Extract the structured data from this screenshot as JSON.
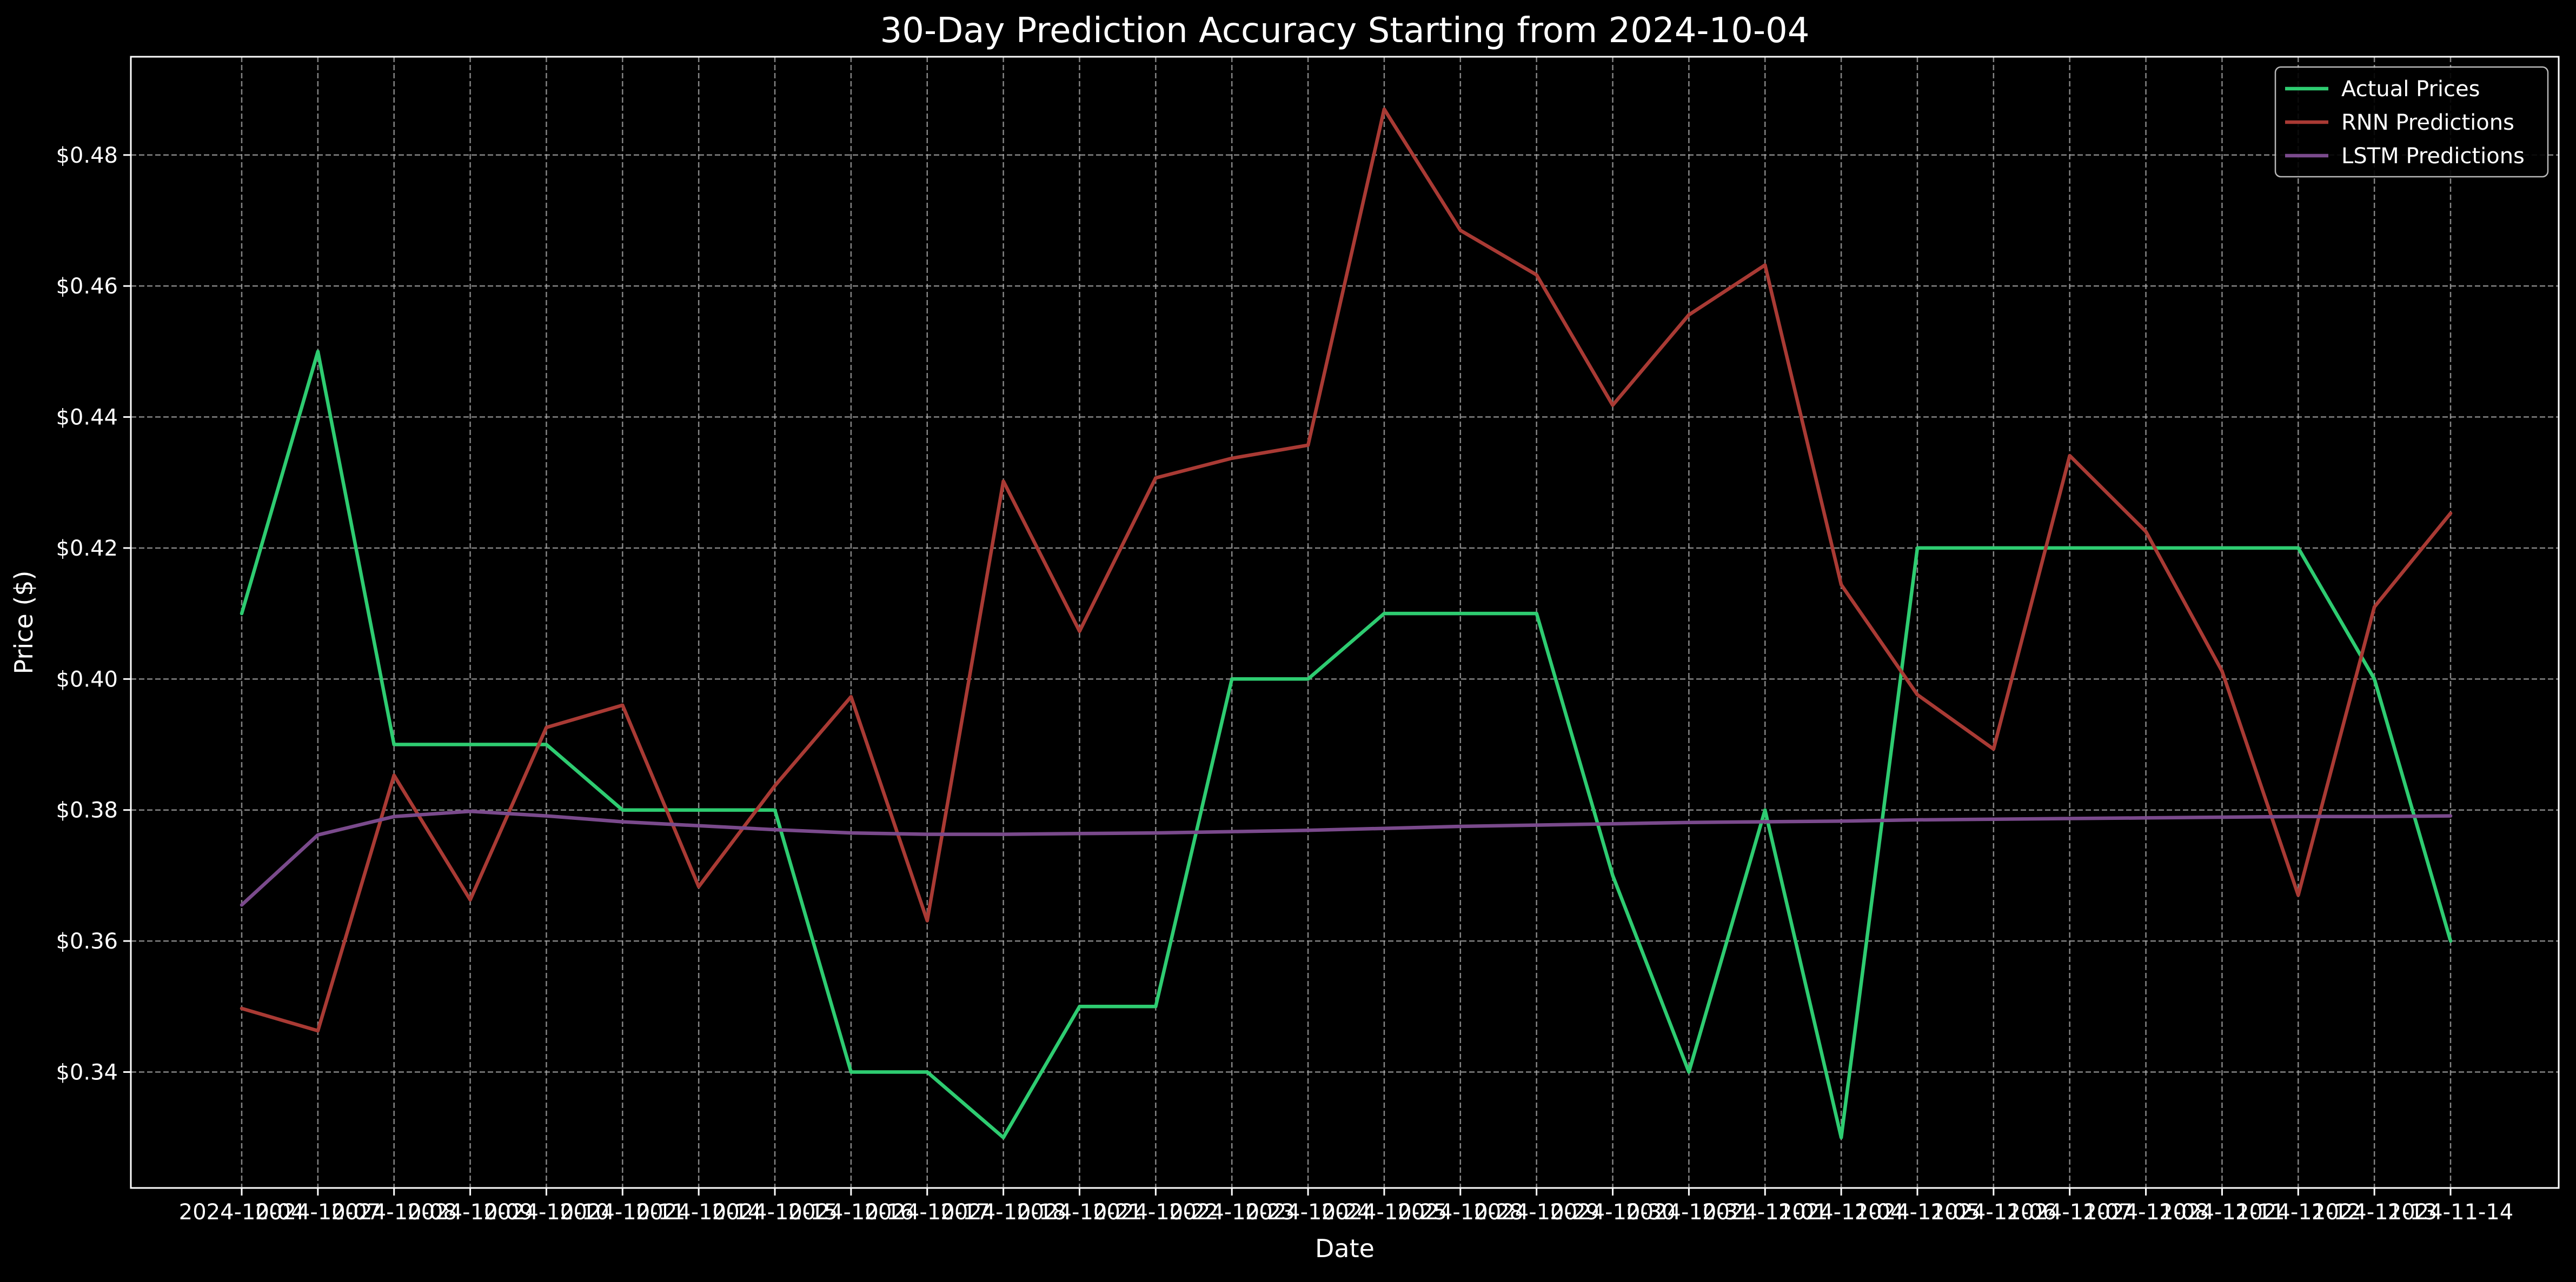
{
  "chart_data": {
    "type": "line",
    "title": "30-Day Prediction Accuracy Starting from 2024-10-04",
    "xlabel": "Date",
    "ylabel": "Price ($)",
    "x": [
      "2024-10-04",
      "2024-10-07",
      "2024-10-08",
      "2024-10-09",
      "2024-10-10",
      "2024-10-11",
      "2024-10-14",
      "2024-10-15",
      "2024-10-16",
      "2024-10-17",
      "2024-10-18",
      "2024-10-21",
      "2024-10-22",
      "2024-10-23",
      "2024-10-24",
      "2024-10-25",
      "2024-10-28",
      "2024-10-29",
      "2024-10-30",
      "2024-10-31",
      "2024-11-01",
      "2024-11-04",
      "2024-11-05",
      "2024-11-06",
      "2024-11-07",
      "2024-11-08",
      "2024-11-11",
      "2024-11-12",
      "2024-11-13",
      "2024-11-14"
    ],
    "yticks": [
      0.34,
      0.36,
      0.38,
      0.4,
      0.42,
      0.44,
      0.46,
      0.48
    ],
    "ytick_labels": [
      "$0.34",
      "$0.36",
      "$0.38",
      "$0.40",
      "$0.42",
      "$0.44",
      "$0.46",
      "$0.48"
    ],
    "ylim": [
      0.3223,
      0.495
    ],
    "grid": true,
    "legend_position": "top-right",
    "series": [
      {
        "name": "Actual Prices",
        "color": "#2ecc71",
        "values": [
          0.41,
          0.45,
          0.39,
          0.39,
          0.39,
          0.38,
          0.38,
          0.38,
          0.34,
          0.34,
          0.33,
          0.35,
          0.35,
          0.4,
          0.4,
          0.41,
          0.41,
          0.41,
          0.37,
          0.34,
          0.38,
          0.33,
          0.42,
          0.42,
          0.42,
          0.42,
          0.42,
          0.42,
          0.4,
          0.36
        ]
      },
      {
        "name": "RNN Predictions",
        "color": "#a93a34",
        "values": [
          0.3497,
          0.3463,
          0.3853,
          0.3663,
          0.3926,
          0.396,
          0.3683,
          0.3837,
          0.3973,
          0.3631,
          0.4302,
          0.4073,
          0.4307,
          0.4337,
          0.4357,
          0.487,
          0.4685,
          0.4617,
          0.4418,
          0.4556,
          0.4632,
          0.4144,
          0.3976,
          0.3893,
          0.4341,
          0.4225,
          0.4012,
          0.367,
          0.411,
          0.4253
        ]
      },
      {
        "name": "LSTM Predictions",
        "color": "#7a4a8c",
        "values": [
          0.3655,
          0.3762,
          0.379,
          0.3798,
          0.3791,
          0.3782,
          0.3776,
          0.377,
          0.3765,
          0.3763,
          0.3763,
          0.3764,
          0.3765,
          0.3767,
          0.3769,
          0.3772,
          0.3775,
          0.3777,
          0.3779,
          0.3781,
          0.3782,
          0.3783,
          0.3785,
          0.3786,
          0.3787,
          0.3788,
          0.3789,
          0.379,
          0.379,
          0.3791
        ]
      }
    ]
  }
}
